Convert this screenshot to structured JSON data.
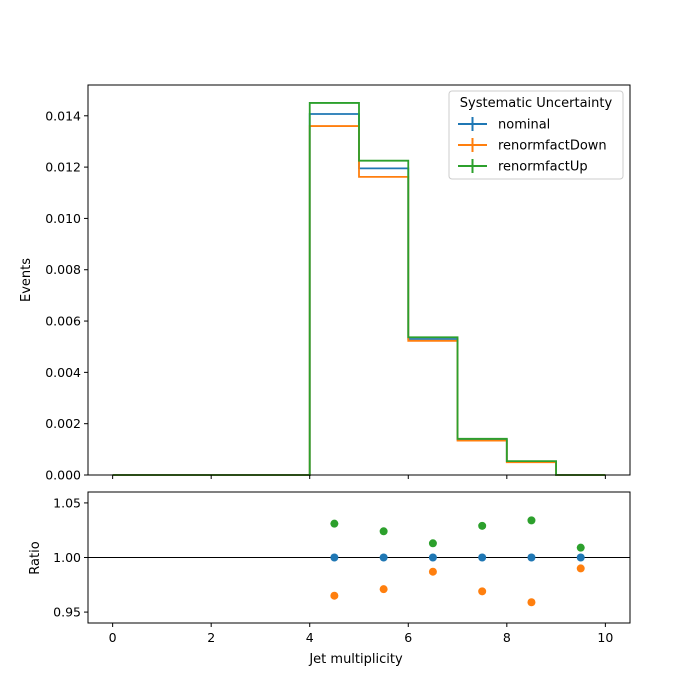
{
  "chart_data": [
    {
      "type": "line",
      "drawstyle": "step",
      "ylabel": "Events",
      "xlim": [
        -0.5,
        10.5
      ],
      "ylim": [
        0,
        0.0152
      ],
      "y_ticks": [
        0.0,
        0.002,
        0.004,
        0.006,
        0.008,
        0.01,
        0.012,
        0.014
      ],
      "y_tick_labels": [
        "0.000",
        "0.002",
        "0.004",
        "0.006",
        "0.008",
        "0.010",
        "0.012",
        "0.014"
      ],
      "bin_edges": [
        0,
        1,
        2,
        3,
        4,
        5,
        6,
        7,
        8,
        9,
        10
      ],
      "legend": {
        "title": "Systematic Uncertainty",
        "placement": "upper right"
      },
      "series": [
        {
          "name": "nominal",
          "color": "#1f77b4",
          "values": [
            0,
            0,
            0,
            0,
            0.01407,
            0.01195,
            0.0053,
            0.00138,
            0.00052,
            0
          ]
        },
        {
          "name": "renormfactDown",
          "color": "#ff7f0e",
          "values": [
            0,
            0,
            0,
            0,
            0.0136,
            0.01162,
            0.00523,
            0.00134,
            0.0005,
            0
          ]
        },
        {
          "name": "renormfactUp",
          "color": "#2ca02c",
          "values": [
            0,
            0,
            0,
            0,
            0.0145,
            0.01225,
            0.00537,
            0.00141,
            0.00054,
            0
          ]
        }
      ]
    },
    {
      "type": "scatter",
      "xlabel": "Jet multiplicity",
      "ylabel": "Ratio",
      "xlim": [
        -0.5,
        10.5
      ],
      "ylim": [
        0.94,
        1.06
      ],
      "x_ticks": [
        0,
        2,
        4,
        6,
        8,
        10
      ],
      "x_tick_labels": [
        "0",
        "2",
        "4",
        "6",
        "8",
        "10"
      ],
      "y_ticks": [
        0.95,
        1.0,
        1.05
      ],
      "y_tick_labels": [
        "0.95",
        "1.00",
        "1.05"
      ],
      "reference_line": 1.0,
      "x": [
        4.5,
        5.5,
        6.5,
        7.5,
        8.5,
        9.5
      ],
      "series": [
        {
          "name": "nominal",
          "color": "#1f77b4",
          "values": [
            1.0,
            1.0,
            1.0,
            1.0,
            1.0,
            1.0
          ]
        },
        {
          "name": "renormfactDown",
          "color": "#ff7f0e",
          "values": [
            0.965,
            0.971,
            0.987,
            0.969,
            0.959,
            0.99
          ]
        },
        {
          "name": "renormfactUp",
          "color": "#2ca02c",
          "values": [
            1.031,
            1.024,
            1.013,
            1.029,
            1.034,
            1.009
          ]
        }
      ]
    }
  ]
}
